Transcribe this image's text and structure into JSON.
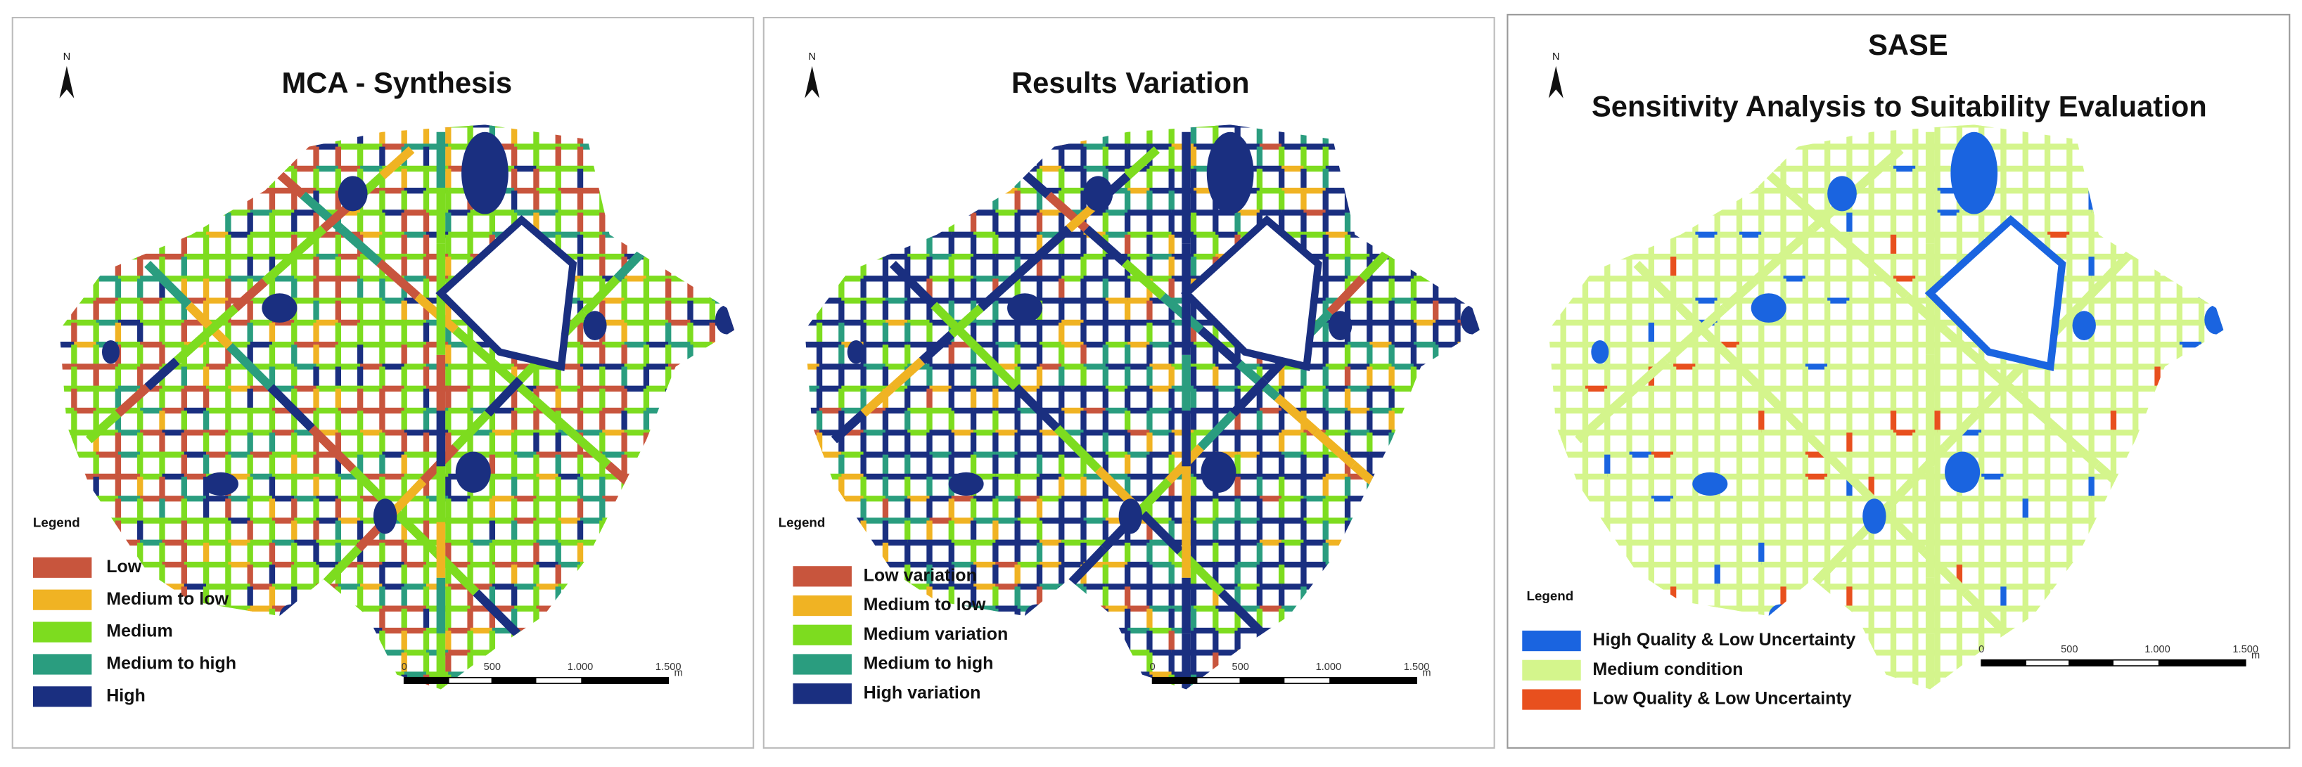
{
  "panels": [
    {
      "title": "MCA - Synthesis",
      "north": "N",
      "legend_title": "Legend",
      "legend": [
        {
          "label": "Low",
          "color": "#c8553d"
        },
        {
          "label": "Medium to low",
          "color": "#f0b323"
        },
        {
          "label": "Medium",
          "color": "#7ddc1f"
        },
        {
          "label": "Medium to high",
          "color": "#2a9d7f"
        },
        {
          "label": "High",
          "color": "#1a2f80"
        }
      ],
      "scale": [
        "0",
        "500",
        "1.000",
        "1.500"
      ],
      "unit": "m"
    },
    {
      "title": "Results Variation",
      "north": "N",
      "legend_title": "Legend",
      "legend": [
        {
          "label": "Low variation",
          "color": "#c8553d"
        },
        {
          "label": "Medium to low",
          "color": "#f0b323"
        },
        {
          "label": "Medium variation",
          "color": "#7ddc1f"
        },
        {
          "label": "Medium to high",
          "color": "#2a9d7f"
        },
        {
          "label": "High variation",
          "color": "#1a2f80"
        }
      ],
      "scale": [
        "0",
        "500",
        "1.000",
        "1.500"
      ],
      "unit": "m"
    },
    {
      "title": "SASE",
      "subtitle": "Sensitivity Analysis to Suitability Evaluation",
      "north": "N",
      "legend_title": "Legend",
      "legend": [
        {
          "label": "High Quality & Low Uncertainty",
          "color": "#1a64e0"
        },
        {
          "label": "Medium condition",
          "color": "#d4f58c"
        },
        {
          "label": "Low Quality & Low Uncertainty",
          "color": "#e8501e"
        }
      ],
      "scale": [
        "0",
        "500",
        "1.000",
        "1.500"
      ],
      "unit": "m"
    }
  ]
}
